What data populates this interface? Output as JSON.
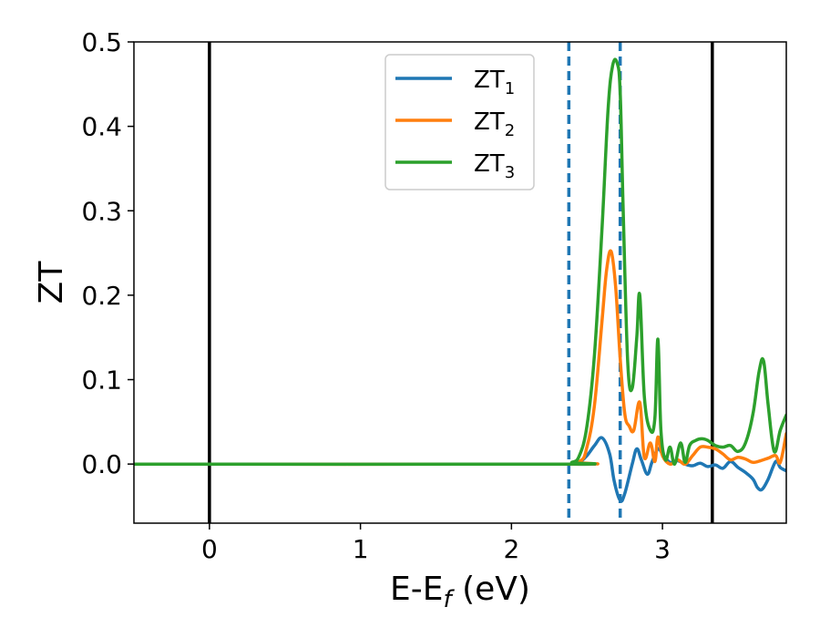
{
  "chart_data": {
    "type": "line",
    "xlabel": "E-E",
    "xlabel_sub": "f",
    "xlabel_unit": " (eV)",
    "ylabel": "ZT",
    "xlim": [
      -0.5,
      3.82
    ],
    "ylim": [
      -0.07,
      0.5
    ],
    "xticks": [
      0,
      1,
      2,
      3
    ],
    "xtick_labels": [
      "0",
      "1",
      "2",
      "3"
    ],
    "yticks": [
      0.0,
      0.1,
      0.2,
      0.3,
      0.4,
      0.5
    ],
    "ytick_labels": [
      "0.0",
      "0.1",
      "0.2",
      "0.3",
      "0.4",
      "0.5"
    ],
    "grid": false,
    "legend_position": "top-center",
    "vertical_lines": [
      {
        "x": 0.0,
        "style": "solid",
        "color": "#000000"
      },
      {
        "x": 3.33,
        "style": "solid",
        "color": "#000000"
      },
      {
        "x": 2.38,
        "style": "dashed",
        "color": "#1f77b4"
      },
      {
        "x": 2.72,
        "style": "dashed",
        "color": "#1f77b4"
      }
    ],
    "series": [
      {
        "name": "ZT",
        "name_sub": "1",
        "color": "#1f77b4",
        "x": [
          -0.5,
          2.3,
          2.4,
          2.45,
          2.5,
          2.55,
          2.6,
          2.65,
          2.68,
          2.72,
          2.75,
          2.8,
          2.83,
          2.86,
          2.9,
          2.93,
          2.97,
          3.0,
          3.05,
          3.1,
          3.15,
          3.2,
          3.25,
          3.3,
          3.35,
          3.4,
          3.45,
          3.5,
          3.55,
          3.6,
          3.63,
          3.66,
          3.7,
          3.75,
          3.78,
          3.82
        ],
        "y": [
          0.0,
          0.0,
          0.0,
          0.002,
          0.01,
          0.022,
          0.031,
          0.012,
          -0.02,
          -0.043,
          -0.035,
          0.0,
          0.018,
          0.005,
          -0.012,
          0.002,
          0.018,
          0.012,
          0.002,
          0.004,
          0.0,
          -0.002,
          0.001,
          -0.003,
          -0.001,
          -0.005,
          0.003,
          -0.004,
          -0.01,
          -0.018,
          -0.028,
          -0.03,
          -0.018,
          0.003,
          -0.004,
          -0.008
        ]
      },
      {
        "name": "ZT",
        "name_sub": "2",
        "color": "#ff7f0e",
        "x": [
          -0.5,
          2.3,
          2.45,
          2.5,
          2.55,
          2.6,
          2.63,
          2.66,
          2.69,
          2.72,
          2.75,
          2.78,
          2.81,
          2.85,
          2.88,
          2.92,
          2.95,
          2.97,
          3.0,
          3.05,
          3.1,
          3.15,
          3.2,
          3.25,
          3.3,
          3.35,
          3.4,
          3.45,
          3.5,
          3.55,
          3.6,
          3.65,
          3.7,
          3.75,
          3.78,
          3.82
        ],
        "y": [
          0.0,
          0.0,
          0.003,
          0.02,
          0.07,
          0.17,
          0.23,
          0.252,
          0.21,
          0.125,
          0.06,
          0.045,
          0.04,
          0.073,
          0.008,
          0.025,
          0.003,
          0.032,
          0.01,
          0.0,
          0.005,
          0.0,
          0.01,
          0.02,
          0.02,
          0.018,
          0.012,
          0.005,
          0.008,
          0.006,
          0.002,
          0.004,
          0.007,
          0.01,
          0.002,
          0.036
        ]
      },
      {
        "name": "ZT",
        "name_sub": "3",
        "color": "#2ca02c",
        "x": [
          -0.5,
          2.3,
          2.4,
          2.45,
          2.5,
          2.55,
          2.6,
          2.64,
          2.67,
          2.7,
          2.72,
          2.74,
          2.77,
          2.8,
          2.83,
          2.85,
          2.88,
          2.92,
          2.95,
          2.97,
          2.99,
          3.02,
          3.05,
          3.08,
          3.12,
          3.15,
          3.18,
          3.22,
          3.26,
          3.3,
          3.35,
          3.4,
          3.45,
          3.5,
          3.55,
          3.6,
          3.64,
          3.67,
          3.7,
          3.74,
          3.78,
          3.82
        ],
        "y": [
          0.0,
          0.0,
          0.002,
          0.01,
          0.045,
          0.13,
          0.28,
          0.42,
          0.472,
          0.475,
          0.44,
          0.3,
          0.12,
          0.09,
          0.15,
          0.2,
          0.08,
          0.04,
          0.055,
          0.148,
          0.04,
          0.005,
          0.02,
          0.0,
          0.025,
          0.002,
          0.022,
          0.028,
          0.03,
          0.028,
          0.022,
          0.02,
          0.022,
          0.015,
          0.025,
          0.06,
          0.11,
          0.122,
          0.07,
          0.015,
          0.04,
          0.058
        ]
      }
    ]
  }
}
